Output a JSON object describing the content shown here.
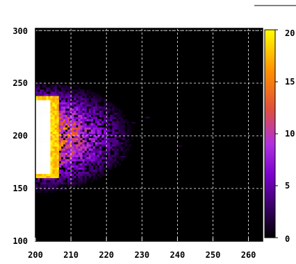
{
  "chart_data": {
    "type": "heatmap",
    "title": "",
    "xlabel": "",
    "ylabel": "",
    "xlim": [
      200,
      264
    ],
    "ylim": [
      100,
      302
    ],
    "x_ticks": [
      "200",
      "210",
      "220",
      "230",
      "240",
      "250",
      "260"
    ],
    "y_ticks": [
      "100",
      "150",
      "200",
      "250",
      "300"
    ],
    "grid": true,
    "colorbar": {
      "range": [
        0,
        20
      ],
      "ticks": [
        "0",
        "5",
        "10",
        "15",
        "20"
      ],
      "colormap": [
        "#000000",
        "#3a0066",
        "#7a00cc",
        "#b030e0",
        "#e0503a",
        "#ff9000",
        "#ffff00"
      ]
    },
    "hot_region": {
      "description_values": {
        "saturated_x": [
          200,
          206
        ],
        "saturated_y": [
          158,
          238
        ],
        "spread_x": [
          200,
          228
        ],
        "spread_y": [
          142,
          252
        ]
      }
    },
    "sparse_points": [
      {
        "x": 231,
        "y": 217,
        "value": 3
      },
      {
        "x": 240,
        "y": 190,
        "value": 2
      },
      {
        "x": 227,
        "y": 212,
        "value": 2
      },
      {
        "x": 224,
        "y": 180,
        "value": 3
      }
    ]
  }
}
